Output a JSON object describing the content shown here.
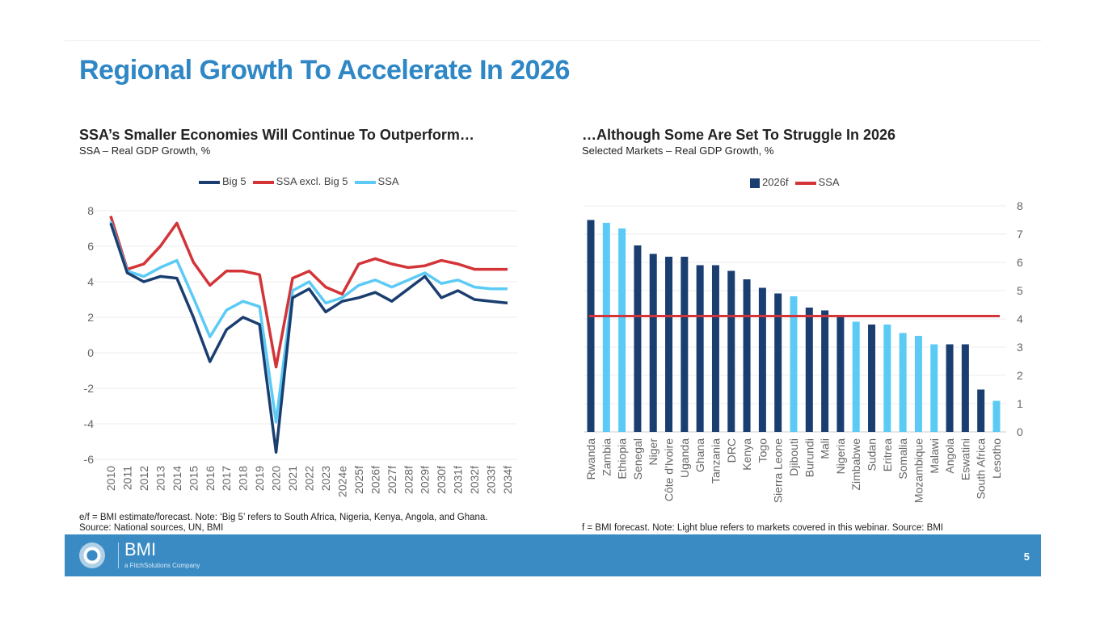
{
  "slide": {
    "title": "Regional Growth To Accelerate In 2026",
    "page_number": "5",
    "logo": "BMI",
    "logo_tagline": "a FitchSolutions Company"
  },
  "chart_data": [
    {
      "type": "line",
      "title": "SSA’s Smaller Economies Will Continue To Outperform…",
      "subtitle": "SSA – Real GDP Growth, %",
      "ylim": [
        -6,
        8
      ],
      "yticks": [
        "-6",
        "-4",
        "-2",
        "0",
        "2",
        "4",
        "6",
        "8"
      ],
      "grid": true,
      "legend_placement": "top",
      "categories": [
        "2010",
        "2011",
        "2012",
        "2013",
        "2014",
        "2015",
        "2016",
        "2017",
        "2018",
        "2019",
        "2020",
        "2021",
        "2022",
        "2023",
        "2024e",
        "2025f",
        "2026f",
        "2027f",
        "2028f",
        "2029f",
        "2030f",
        "2031f",
        "2032f",
        "2033f",
        "2034f"
      ],
      "series": [
        {
          "name": "Big 5",
          "color": "#1a3e70",
          "values": [
            7.3,
            4.5,
            4.0,
            4.3,
            4.2,
            2.0,
            -0.5,
            1.3,
            2.0,
            1.6,
            -5.6,
            3.1,
            3.6,
            2.3,
            2.9,
            3.1,
            3.4,
            2.9,
            3.6,
            4.3,
            3.1,
            3.5,
            3.0,
            2.9,
            2.8
          ]
        },
        {
          "name": "SSA excl. Big 5",
          "color": "#d33438",
          "values": [
            7.7,
            4.7,
            5.0,
            6.0,
            7.3,
            5.1,
            3.8,
            4.6,
            4.6,
            4.4,
            -0.8,
            4.2,
            4.6,
            3.7,
            3.3,
            5.0,
            5.3,
            5.0,
            4.8,
            4.9,
            5.2,
            5.0,
            4.7,
            4.7,
            4.7
          ]
        },
        {
          "name": "SSA",
          "color": "#5bcbf5",
          "values": [
            7.4,
            4.6,
            4.3,
            4.8,
            5.2,
            3.1,
            0.9,
            2.4,
            2.9,
            2.6,
            -3.9,
            3.5,
            4.0,
            2.8,
            3.1,
            3.8,
            4.1,
            3.7,
            4.1,
            4.5,
            3.9,
            4.1,
            3.7,
            3.6,
            3.6
          ]
        }
      ],
      "note": "e/f = BMI estimate/forecast. Note: ‘Big 5’ refers to South Africa, Nigeria, Kenya, Angola, and Ghana.",
      "source": "Source: National sources, UN, BMI"
    },
    {
      "type": "bar",
      "title": "…Although Some Are Set To Struggle In 2026",
      "subtitle": "Selected Markets – Real GDP Growth, %",
      "ylim": [
        0,
        8
      ],
      "yticks": [
        "0",
        "1",
        "2",
        "3",
        "4",
        "5",
        "6",
        "7",
        "8"
      ],
      "y_axis_side": "right",
      "grid": true,
      "legend_placement": "top",
      "categories": [
        "Rwanda",
        "Zambia",
        "Ethiopia",
        "Senegal",
        "Niger",
        "Côte d'Ivoire",
        "Uganda",
        "Ghana",
        "Tanzania",
        "DRC",
        "Kenya",
        "Togo",
        "Sierra Leone",
        "Djibouti",
        "Burundi",
        "Mali",
        "Nigeria",
        "Zimbabwe",
        "Sudan",
        "Eritrea",
        "Somalia",
        "Mozambique",
        "Malawi",
        "Angola",
        "Eswatini",
        "South Africa",
        "Lesotho"
      ],
      "series": [
        {
          "name": "2026f",
          "color": "#1a3e70",
          "highlight_color": "#5bcbf5",
          "values": [
            7.5,
            7.4,
            7.2,
            6.6,
            6.3,
            6.2,
            6.2,
            5.9,
            5.9,
            5.7,
            5.4,
            5.1,
            4.9,
            4.8,
            4.4,
            4.3,
            4.1,
            3.9,
            3.8,
            3.8,
            3.5,
            3.4,
            3.1,
            3.1,
            3.1,
            1.5,
            1.1
          ],
          "highlighted": [
            false,
            true,
            true,
            false,
            false,
            false,
            false,
            false,
            false,
            false,
            false,
            false,
            false,
            true,
            false,
            false,
            false,
            true,
            false,
            true,
            true,
            true,
            true,
            false,
            false,
            false,
            true
          ]
        },
        {
          "name": "SSA",
          "color": "#d33438",
          "value": 4.1
        }
      ],
      "note": "f = BMI forecast. Note: Light blue refers to markets covered in this webinar. Source: BMI"
    }
  ]
}
